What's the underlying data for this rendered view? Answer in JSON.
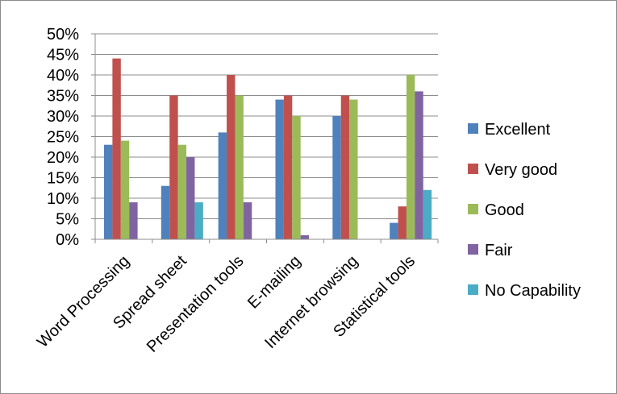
{
  "chart_data": {
    "type": "bar",
    "title": "",
    "xlabel": "",
    "ylabel": "",
    "ylim": [
      0,
      50
    ],
    "y_tick_labels": [
      "0%",
      "5%",
      "10%",
      "15%",
      "20%",
      "25%",
      "30%",
      "35%",
      "40%",
      "45%",
      "50%"
    ],
    "grid": true,
    "legend_position": "right",
    "categories": [
      "Word Processing",
      "Spread sheet",
      "Presentation tools",
      "E-mailing",
      "Internet browsing",
      "Statistical tools"
    ],
    "series": [
      {
        "name": "Excellent",
        "color": "#4F81BD",
        "values": [
          23,
          13,
          26,
          34,
          30,
          4
        ]
      },
      {
        "name": "Very good",
        "color": "#C0504D",
        "values": [
          44,
          35,
          40,
          35,
          35,
          8
        ]
      },
      {
        "name": "Good",
        "color": "#9BBB59",
        "values": [
          24,
          23,
          35,
          30,
          34,
          40
        ]
      },
      {
        "name": "Fair",
        "color": "#8064A2",
        "values": [
          9,
          20,
          9,
          1,
          0,
          36
        ]
      },
      {
        "name": "No Capability",
        "color": "#4BACC6",
        "values": [
          0,
          9,
          0,
          0,
          0,
          12
        ]
      }
    ]
  }
}
